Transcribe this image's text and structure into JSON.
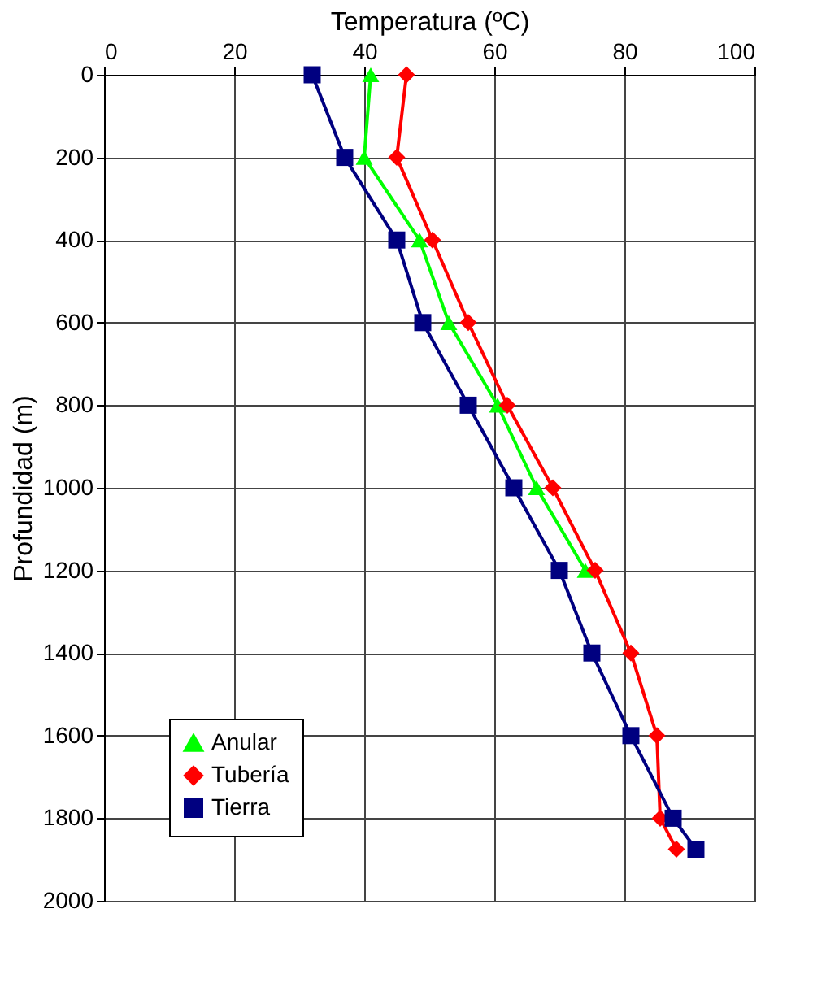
{
  "chart_data": {
    "type": "line",
    "xlabel": "Temperatura (ºC)",
    "ylabel": "Profundidad (m)",
    "xlim": [
      0,
      100
    ],
    "xticks": [
      0,
      20,
      40,
      60,
      80,
      100
    ],
    "ylim": [
      2000,
      0
    ],
    "yticks": [
      0,
      200,
      400,
      600,
      800,
      1000,
      1200,
      1400,
      1600,
      1800,
      2000
    ],
    "grid": true,
    "legend": "bottom left",
    "series": [
      {
        "name": "Anular",
        "color": "#00ff00",
        "marker": "triangle",
        "x": [
          41,
          40,
          48.5,
          53,
          60.5,
          66.5,
          74
        ],
        "values": [
          0,
          200,
          400,
          600,
          800,
          1000,
          1200
        ]
      },
      {
        "name": "Tubería",
        "color": "#ff0000",
        "marker": "diamond",
        "x": [
          46.5,
          45,
          50.5,
          56,
          62,
          69,
          75.5,
          81,
          85,
          85.5,
          88
        ],
        "values": [
          0,
          200,
          400,
          600,
          800,
          1000,
          1200,
          1400,
          1600,
          1800,
          1875
        ]
      },
      {
        "name": "Tierra",
        "color": "#000080",
        "marker": "square",
        "x": [
          32,
          37,
          45,
          49,
          56,
          63,
          70,
          75,
          81,
          87.5,
          91
        ],
        "values": [
          0,
          200,
          400,
          600,
          800,
          1000,
          1200,
          1400,
          1600,
          1800,
          1875
        ]
      }
    ]
  }
}
